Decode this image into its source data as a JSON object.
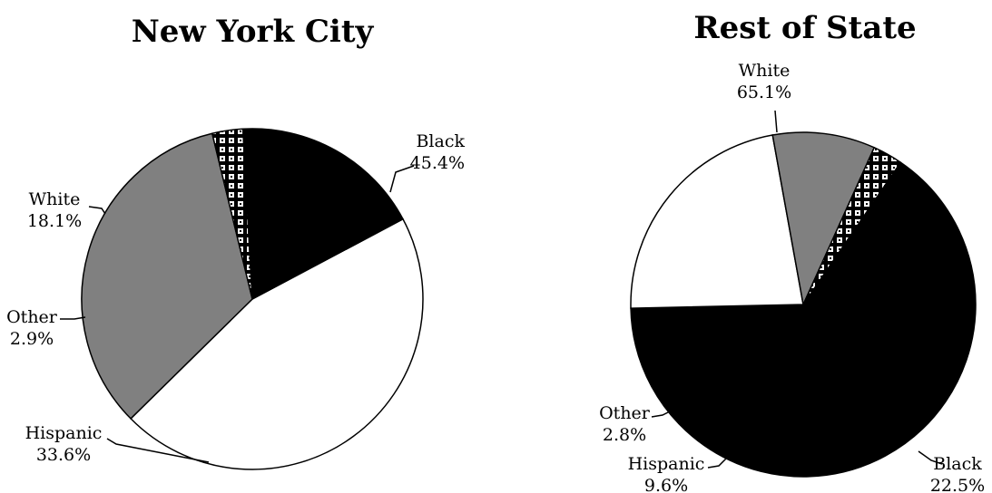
{
  "colors": {
    "Black": "#ffffff",
    "White": "#000000",
    "Hispanic": "#808080",
    "Other": "checker-pattern"
  },
  "chart_data": [
    {
      "type": "pie",
      "title": "New York City",
      "slices": [
        {
          "label": "Black",
          "value": 45.4,
          "value_label": "45.4%"
        },
        {
          "label": "Hispanic",
          "value": 33.6,
          "value_label": "33.6%"
        },
        {
          "label": "Other",
          "value": 2.9,
          "value_label": "2.9%"
        },
        {
          "label": "White",
          "value": 18.1,
          "value_label": "18.1%"
        }
      ]
    },
    {
      "type": "pie",
      "title": "Rest of State",
      "slices": [
        {
          "label": "White",
          "value": 65.1,
          "value_label": "65.1%"
        },
        {
          "label": "Black",
          "value": 22.5,
          "value_label": "22.5%"
        },
        {
          "label": "Hispanic",
          "value": 9.6,
          "value_label": "9.6%"
        },
        {
          "label": "Other",
          "value": 2.8,
          "value_label": "2.8%"
        }
      ]
    }
  ]
}
